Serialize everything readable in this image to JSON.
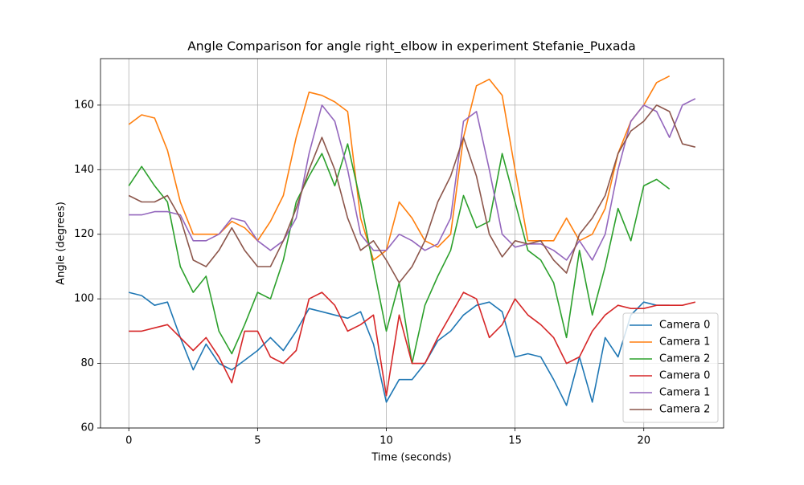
{
  "chart_data": {
    "type": "line",
    "title": "Angle Comparison for angle right_elbow in experiment Stefanie_Puxada",
    "x_label": "Time (seconds)",
    "y_label": "Angle (degrees)",
    "x": [
      0,
      0.5,
      1,
      1.5,
      2,
      2.5,
      3,
      3.5,
      4,
      4.5,
      5,
      5.5,
      6,
      6.5,
      7,
      7.5,
      8,
      8.5,
      9,
      9.5,
      10,
      10.5,
      11,
      11.5,
      12,
      12.5,
      13,
      13.5,
      14,
      14.5,
      15,
      15.5,
      16,
      16.5,
      17,
      17.5,
      18,
      18.5,
      19,
      19.5,
      20,
      20.5,
      21,
      21.5,
      22
    ],
    "series": [
      {
        "name": "Camera 0",
        "color": "#1f77b4",
        "values": [
          102,
          101,
          98,
          99,
          88,
          78,
          86,
          80,
          78,
          81,
          84,
          88,
          84,
          90,
          97,
          96,
          95,
          94,
          96,
          86,
          68,
          75,
          75,
          80,
          87,
          90,
          95,
          98,
          99,
          96,
          82,
          83,
          82,
          75,
          67,
          82,
          68,
          88,
          82,
          95,
          99,
          98,
          98,
          null,
          null
        ]
      },
      {
        "name": "Camera 1",
        "color": "#ff7f0e",
        "values": [
          154,
          157,
          156,
          146,
          130,
          120,
          120,
          120,
          124,
          122,
          118,
          124,
          132,
          150,
          164,
          163,
          161,
          158,
          125,
          112,
          115,
          130,
          125,
          118,
          116,
          120,
          150,
          166,
          168,
          163,
          140,
          118,
          118,
          118,
          125,
          118,
          120,
          128,
          145,
          155,
          160,
          167,
          169,
          null,
          null
        ]
      },
      {
        "name": "Camera 2",
        "color": "#2ca02c",
        "values": [
          135,
          141,
          135,
          130,
          110,
          102,
          107,
          90,
          83,
          92,
          102,
          100,
          112,
          130,
          138,
          145,
          135,
          148,
          130,
          110,
          90,
          105,
          80,
          98,
          107,
          115,
          132,
          122,
          124,
          145,
          130,
          115,
          112,
          105,
          88,
          115,
          95,
          110,
          128,
          118,
          135,
          137,
          134,
          null,
          null
        ]
      },
      {
        "name": "Camera 0",
        "color": "#d62728",
        "values": [
          90,
          90,
          91,
          92,
          88,
          84,
          88,
          82,
          74,
          90,
          90,
          82,
          80,
          84,
          100,
          102,
          98,
          90,
          92,
          95,
          70,
          95,
          80,
          80,
          88,
          95,
          102,
          100,
          88,
          92,
          100,
          95,
          92,
          88,
          80,
          82,
          90,
          95,
          98,
          97,
          97,
          98,
          98,
          98,
          99
        ]
      },
      {
        "name": "Camera 1",
        "color": "#9467bd",
        "values": [
          126,
          126,
          127,
          127,
          126,
          118,
          118,
          120,
          125,
          124,
          118,
          115,
          118,
          125,
          145,
          160,
          155,
          140,
          120,
          115,
          115,
          120,
          118,
          115,
          117,
          125,
          155,
          158,
          140,
          120,
          116,
          117,
          117,
          115,
          112,
          118,
          112,
          120,
          140,
          155,
          160,
          158,
          150,
          160,
          162
        ]
      },
      {
        "name": "Camera 2",
        "color": "#8c564b",
        "values": [
          132,
          130,
          130,
          132,
          125,
          112,
          110,
          115,
          122,
          115,
          110,
          110,
          118,
          128,
          140,
          150,
          140,
          125,
          115,
          118,
          112,
          105,
          110,
          118,
          130,
          138,
          150,
          138,
          120,
          113,
          118,
          117,
          118,
          112,
          108,
          120,
          125,
          132,
          145,
          152,
          155,
          160,
          158,
          148,
          147
        ]
      }
    ],
    "xlim": [
      -1.1,
      23.1
    ],
    "ylim": [
      60,
      174.4
    ],
    "xticks": [
      0,
      5,
      10,
      15,
      20
    ],
    "yticks": [
      60,
      80,
      100,
      120,
      140,
      160
    ],
    "grid": true,
    "legend": "lower right"
  }
}
